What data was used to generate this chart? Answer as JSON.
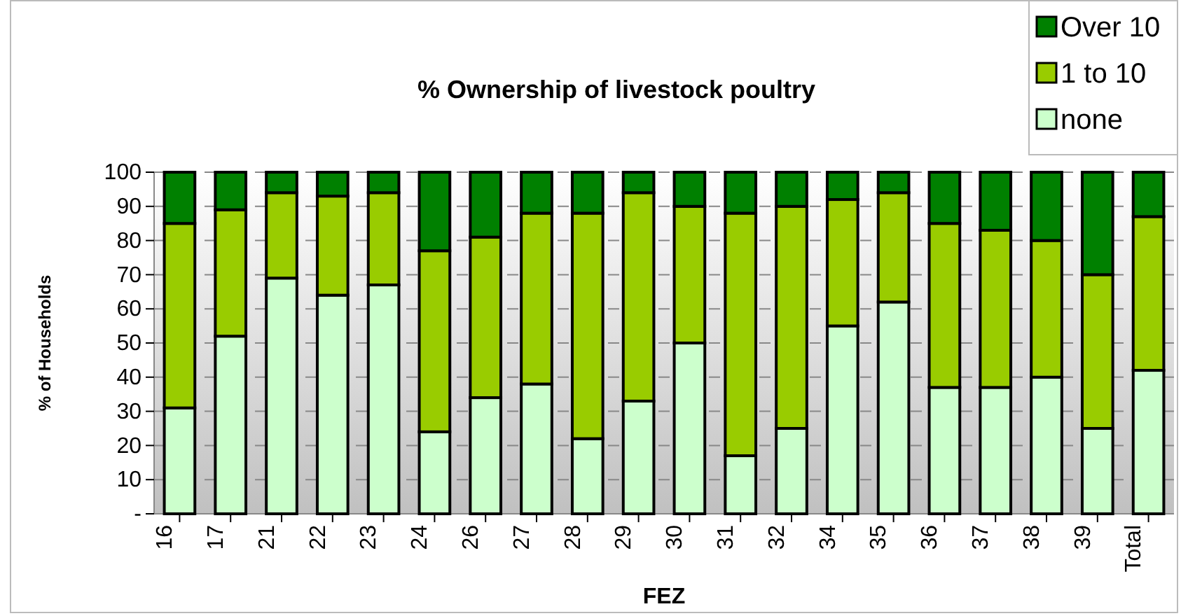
{
  "chart_data": {
    "type": "bar",
    "title": "% Ownership of livestock  poultry",
    "xlabel": "FEZ",
    "ylabel": "% of Households",
    "categories": [
      "16",
      "17",
      "21",
      "22",
      "23",
      "24",
      "26",
      "27",
      "28",
      "29",
      "30",
      "31",
      "32",
      "34",
      "35",
      "36",
      "37",
      "38",
      "39",
      "Total"
    ],
    "stacked": true,
    "series": [
      {
        "name": "none",
        "color": "#ccffcc",
        "values": [
          31,
          52,
          69,
          64,
          67,
          24,
          34,
          38,
          22,
          33,
          50,
          17,
          25,
          55,
          62,
          37,
          37,
          40,
          25,
          42
        ]
      },
      {
        "name": "1 to 10",
        "color": "#99cc00",
        "values": [
          54,
          37,
          25,
          29,
          27,
          53,
          47,
          50,
          66,
          61,
          40,
          71,
          65,
          37,
          32,
          48,
          46,
          40,
          45,
          45
        ]
      },
      {
        "name": "Over 10",
        "color": "#008000",
        "values": [
          15,
          11,
          6,
          7,
          6,
          23,
          19,
          12,
          12,
          6,
          10,
          12,
          10,
          8,
          6,
          15,
          17,
          20,
          30,
          13
        ]
      }
    ],
    "ylim": [
      0,
      100
    ],
    "yticks": [
      {
        "value": 0,
        "label": "-"
      },
      10,
      20,
      30,
      40,
      50,
      60,
      70,
      80,
      90,
      100
    ],
    "grid": "y",
    "legend": "top right"
  }
}
